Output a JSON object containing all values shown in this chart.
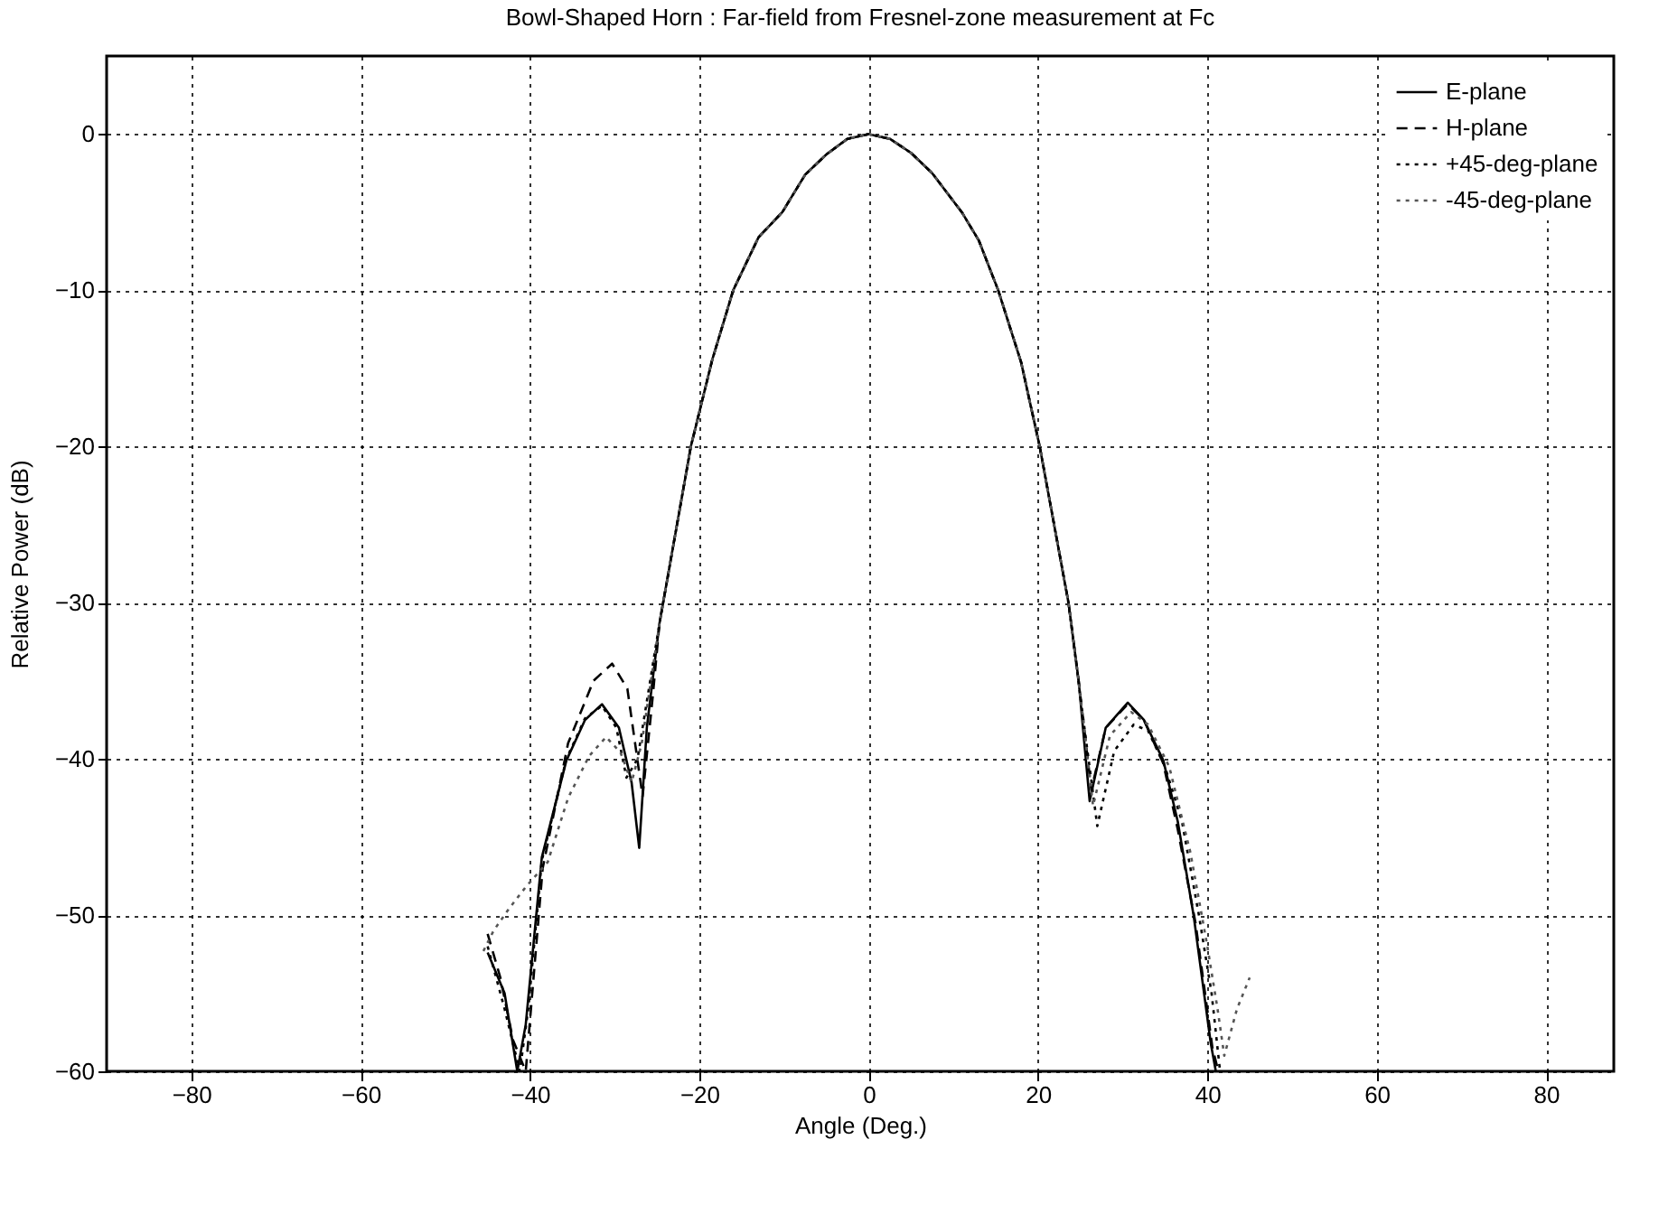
{
  "chart_data": {
    "type": "line",
    "title": "Bowl-Shaped Horn : Far-field from Fresnel-zone measurement at Fc",
    "xlabel": "Angle (Deg.)",
    "ylabel": "Relative Power (dB)",
    "xlim": [
      -90,
      88
    ],
    "ylim": [
      -60,
      5
    ],
    "xticks": [
      -80,
      -60,
      -40,
      -20,
      0,
      20,
      40,
      60,
      80
    ],
    "yticks": [
      -60,
      -50,
      -40,
      -30,
      -20,
      -10,
      0
    ],
    "grid": true,
    "legend": "top right",
    "series": [
      {
        "name": "E-plane",
        "color": "#000000",
        "line_style": "solid",
        "x": [
          -45,
          -43,
          -41.5,
          -40.5,
          -38.6,
          -35.7,
          -33.5,
          -31.5,
          -29.5,
          -28,
          -27.1,
          -26.2,
          -24.7,
          -21,
          -18.5,
          -16,
          -13,
          -10.2,
          -7.5,
          -5,
          -2.5,
          0,
          2.5,
          5,
          7.5,
          11,
          13,
          15.3,
          18,
          20.2,
          23.6,
          24.8,
          26.1,
          28,
          30.6,
          32.5,
          34.8,
          36.5,
          38.4,
          40.4,
          41
        ],
        "values": [
          -52.4,
          -55,
          -60,
          -57,
          -46.3,
          -40.1,
          -37.5,
          -36.5,
          -38,
          -41.5,
          -45.7,
          -38,
          -31.3,
          -20,
          -14.5,
          -10,
          -6.6,
          -5,
          -2.6,
          -1.3,
          -0.3,
          0,
          -0.3,
          -1.2,
          -2.5,
          -5,
          -6.8,
          -10,
          -14.6,
          -20,
          -30,
          -35,
          -42.7,
          -38,
          -36.4,
          -37.5,
          -40.1,
          -44,
          -50.1,
          -58.2,
          -60
        ]
      },
      {
        "name": "H-plane",
        "color": "#000000",
        "line_style": "dashed",
        "x": [
          -45,
          -43.5,
          -42,
          -40.5,
          -38.5,
          -35.5,
          -32.5,
          -30.3,
          -28.5,
          -26.7,
          -25.5,
          -24.7,
          -21,
          -18.5,
          -16,
          -13,
          -10.2,
          -7.5,
          -5,
          -2.5,
          0,
          2.5,
          5,
          7.5,
          11,
          13,
          15.3,
          18,
          20.2,
          23.6,
          24.8,
          26.3,
          28,
          30.6,
          32.5,
          34.8,
          36.5,
          38.6,
          40.6,
          41.3
        ],
        "values": [
          -51.2,
          -54,
          -58,
          -60,
          -47,
          -39,
          -35,
          -33.9,
          -35.5,
          -42.4,
          -36,
          -31.3,
          -20,
          -14.5,
          -10,
          -6.6,
          -5,
          -2.6,
          -1.3,
          -0.3,
          0,
          -0.3,
          -1.2,
          -2.5,
          -5,
          -6.8,
          -10,
          -14.6,
          -20,
          -30,
          -35,
          -42,
          -38,
          -36.5,
          -37.5,
          -40.3,
          -44.5,
          -50.5,
          -58.5,
          -60
        ]
      },
      {
        "name": "+45-deg-plane",
        "color": "#000000",
        "line_style": "dotted",
        "x": [
          -45,
          -43,
          -41.2,
          -40.2,
          -38.6,
          -35.7,
          -33.5,
          -31.5,
          -29.8,
          -28.6,
          -27.3,
          -24.7,
          -21,
          -18.5,
          -16,
          -13,
          -10.2,
          -7.5,
          -5,
          -2.5,
          0,
          2.5,
          5,
          7.5,
          11,
          13,
          15.3,
          18,
          20.2,
          23.6,
          25,
          27,
          29,
          31.3,
          33,
          35,
          37,
          39,
          40.5,
          41.5
        ],
        "values": [
          -52,
          -56,
          -60,
          -56,
          -46.5,
          -40,
          -37.4,
          -36.6,
          -38,
          -41.2,
          -40,
          -31.3,
          -20,
          -14.5,
          -10,
          -6.6,
          -5,
          -2.6,
          -1.3,
          -0.3,
          0,
          -0.3,
          -1.2,
          -2.5,
          -5,
          -6.8,
          -10,
          -14.6,
          -20,
          -30,
          -36,
          -44.3,
          -39.5,
          -37.8,
          -38.2,
          -40.5,
          -44,
          -50,
          -55,
          -60
        ]
      },
      {
        "name": "-45-deg-plane",
        "color": "#555555",
        "line_style": "dotted",
        "x": [
          -45.5,
          -44.3,
          -42.5,
          -40.5,
          -37.9,
          -35.5,
          -33,
          -31,
          -29.3,
          -28,
          -26.8,
          -24.7,
          -21,
          -18.5,
          -16,
          -13,
          -10.2,
          -7.5,
          -5,
          -2.5,
          0,
          2.5,
          5,
          7.5,
          11,
          13,
          15.3,
          18,
          20.2,
          23.6,
          25,
          26.5,
          28.5,
          31,
          33,
          35.5,
          38,
          40,
          41.2,
          42,
          42.5,
          43.5,
          45
        ],
        "values": [
          -52.3,
          -51,
          -49.6,
          -48.2,
          -46.6,
          -42.5,
          -39.8,
          -38.6,
          -39.6,
          -41.5,
          -39,
          -31.3,
          -20,
          -14.5,
          -10,
          -6.6,
          -5,
          -2.6,
          -1.3,
          -0.3,
          0,
          -0.3,
          -1.2,
          -2.5,
          -5,
          -6.8,
          -10,
          -14.6,
          -20,
          -30,
          -36,
          -43,
          -38.5,
          -37,
          -37.8,
          -40.5,
          -46,
          -52,
          -56,
          -59,
          -58,
          -56,
          -54
        ]
      }
    ]
  }
}
